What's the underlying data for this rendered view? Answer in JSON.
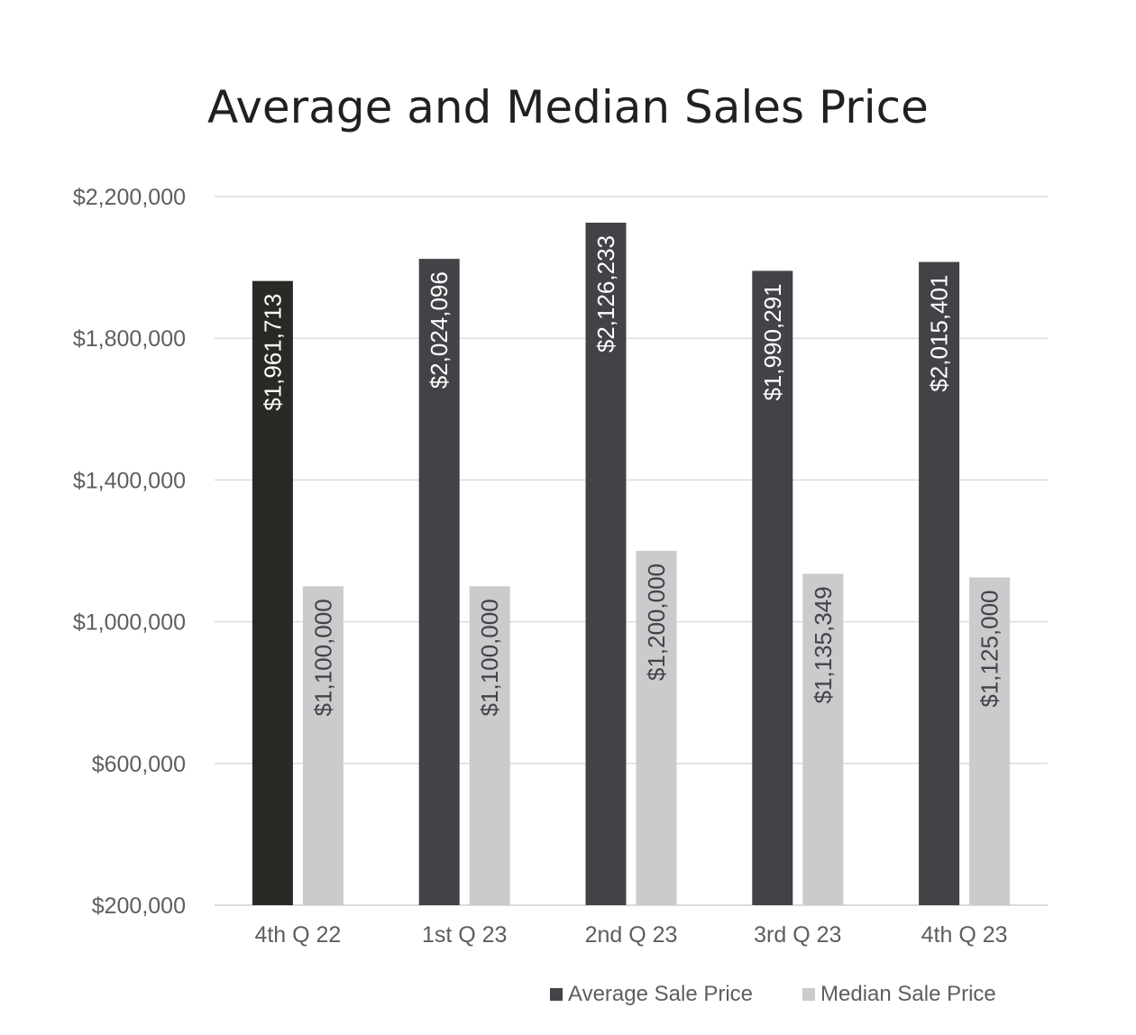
{
  "chart_data": {
    "type": "bar",
    "title": "Average and Median Sales Price",
    "xlabel": "",
    "ylabel": "",
    "categories": [
      "4th Q 22",
      "1st Q 23",
      "2nd Q 23",
      "3rd Q 23",
      "4th Q 23"
    ],
    "series": [
      {
        "name": "Average Sale Price",
        "values": [
          1961713,
          2024096,
          2126233,
          1990291,
          2015401
        ],
        "labels": [
          "$1,961,713",
          "$2,024,096",
          "$2,126,233",
          "$1,990,291",
          "$2,015,401"
        ],
        "colors": [
          "#2a2925",
          "#414347",
          "#414347",
          "#414347",
          "#414347"
        ]
      },
      {
        "name": "Median Sale Price",
        "values": [
          1100000,
          1100000,
          1200000,
          1135349,
          1125000
        ],
        "labels": [
          "$1,100,000",
          "$1,100,000",
          "$1,200,000",
          "$1,135,349",
          "$1,125,000"
        ],
        "colors": [
          "#c9cbcc",
          "#c9cbcc",
          "#c9cbcc",
          "#c9cbcc",
          "#c9cbcc"
        ]
      }
    ],
    "ylim": [
      200000,
      2200000
    ],
    "yticks": [
      200000,
      600000,
      1000000,
      1400000,
      1800000,
      2200000
    ],
    "ytick_labels": [
      "$200,000",
      "$600,000",
      "$1,000,000",
      "$1,400,000",
      "$1,800,000",
      "$2,200,000"
    ],
    "grid": true,
    "legend_position": "bottom",
    "legend_colors": [
      "#414347",
      "#c9cbcc"
    ],
    "label_colors": [
      "#ffffff",
      "#414347"
    ]
  }
}
